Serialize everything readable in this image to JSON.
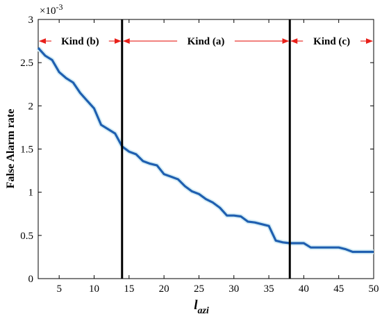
{
  "chart_data": {
    "type": "line",
    "title": "",
    "xlabel_main": "l",
    "xlabel_sub": "azi",
    "ylabel": "False Alarm rate",
    "y_exponent_base": "×10",
    "y_exponent_power": "-3",
    "xlim": [
      2,
      50
    ],
    "ylim": [
      0,
      3
    ],
    "xticks": [
      5,
      10,
      15,
      20,
      25,
      30,
      35,
      40,
      45,
      50
    ],
    "yticks": [
      0,
      0.5,
      1,
      1.5,
      2,
      2.5,
      3
    ],
    "ytick_labels": [
      "0",
      "0.5",
      "1",
      "1.5",
      "2",
      "2.5",
      "3"
    ],
    "grid": false,
    "series": [
      {
        "color": "#1f5fb0",
        "x": [
          2,
          3,
          4,
          5,
          6,
          7,
          8,
          9,
          10,
          11,
          12,
          13,
          14,
          15,
          16,
          17,
          18,
          19,
          20,
          21,
          22,
          23,
          24,
          25,
          26,
          27,
          28,
          29,
          30,
          31,
          32,
          33,
          34,
          35,
          36,
          37,
          38,
          39,
          40,
          41,
          42,
          43,
          44,
          45,
          46,
          47,
          48,
          49,
          50
        ],
        "y": [
          2.67,
          2.58,
          2.53,
          2.39,
          2.32,
          2.27,
          2.15,
          2.06,
          1.97,
          1.78,
          1.73,
          1.68,
          1.53,
          1.47,
          1.44,
          1.36,
          1.33,
          1.31,
          1.21,
          1.18,
          1.15,
          1.07,
          1.01,
          0.98,
          0.92,
          0.88,
          0.82,
          0.73,
          0.73,
          0.72,
          0.66,
          0.65,
          0.63,
          0.61,
          0.44,
          0.42,
          0.41,
          0.41,
          0.41,
          0.36,
          0.36,
          0.36,
          0.36,
          0.36,
          0.34,
          0.31,
          0.31,
          0.31,
          0.31
        ]
      }
    ],
    "vlines": [
      14,
      38
    ],
    "regions": [
      {
        "label": "Kind (b)",
        "from": 2,
        "to": 14
      },
      {
        "label": "Kind (a)",
        "from": 14,
        "to": 38
      },
      {
        "label": "Kind (c)",
        "from": 38,
        "to": 50
      }
    ],
    "region_arrow_y": 2.75,
    "arrow_color": "#e8201a"
  }
}
